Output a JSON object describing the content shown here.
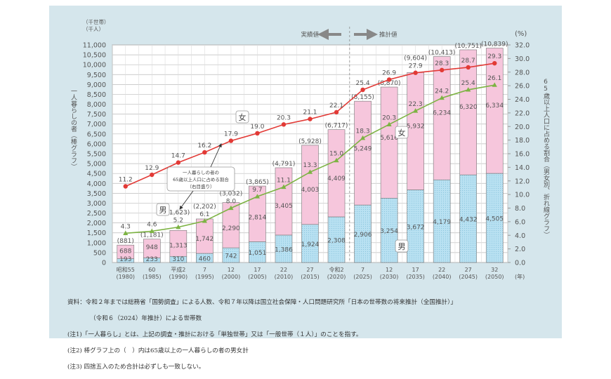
{
  "chart_data": {
    "type": "bar+line",
    "left_axis_unit": "（千世帯）\n（千人）",
    "left_axis_unit_lines": [
      "（千世帯）",
      "（千人）"
    ],
    "ylabel": "一人暮らしの者（棒グラフ）",
    "right_axis_unit": "(%)",
    "ylabel_right": "65歳以上人口に占める割合（男女別、折れ線グラフ）",
    "x_unit": "(年)",
    "ylim": [
      0,
      11000
    ],
    "ylim_right": [
      0,
      32
    ],
    "yticks": [
      "0",
      "500",
      "1,000",
      "1,500",
      "2,000",
      "2,500",
      "3,000",
      "3,500",
      "4,000",
      "4,500",
      "5,000",
      "5,500",
      "6,000",
      "6,500",
      "7,000",
      "7,500",
      "8,000",
      "8,500",
      "9,000",
      "9,500",
      "10,000",
      "10,500",
      "11,000"
    ],
    "yticks_right": [
      "0.0",
      "2.0",
      "4.0",
      "6.0",
      "8.0",
      "10.0",
      "12.0",
      "14.0",
      "16.0",
      "18.0",
      "20.0",
      "22.0",
      "24.0",
      "26.0",
      "28.0",
      "30.0",
      "32.0"
    ],
    "grid": true,
    "categories": [
      {
        "era": "昭和55",
        "year": "(1980)"
      },
      {
        "era": "60",
        "year": "(1985)"
      },
      {
        "era": "平成2",
        "year": "(1990)"
      },
      {
        "era": "7",
        "year": "(1995)"
      },
      {
        "era": "12",
        "year": "(2000)"
      },
      {
        "era": "17",
        "year": "(2005)"
      },
      {
        "era": "22",
        "year": "(2010)"
      },
      {
        "era": "27",
        "year": "(2015)"
      },
      {
        "era": "令和2",
        "year": "(2020)"
      },
      {
        "era": "7",
        "year": "(2025)"
      },
      {
        "era": "12",
        "year": "(2030)"
      },
      {
        "era": "17",
        "year": "(2035)"
      },
      {
        "era": "22",
        "year": "(2040)"
      },
      {
        "era": "27",
        "year": "(2045)"
      },
      {
        "era": "32",
        "year": "(2050)"
      }
    ],
    "bar_series": [
      {
        "name": "男",
        "color": "#b9e1f2",
        "values": [
          193,
          233,
          310,
          460,
          742,
          1051,
          1386,
          1924,
          2308,
          2906,
          3254,
          3672,
          4179,
          4432,
          4505
        ]
      },
      {
        "name": "女",
        "color": "#f6c6dc",
        "values": [
          688,
          948,
          1313,
          1742,
          2290,
          2814,
          3405,
          4003,
          4409,
          5249,
          5616,
          5932,
          6234,
          6320,
          6334
        ]
      }
    ],
    "totals": [
      881,
      1181,
      1623,
      2202,
      3032,
      3865,
      4791,
      5928,
      6717,
      8155,
      8870,
      9604,
      10413,
      10751,
      10839
    ],
    "line_series": [
      {
        "name": "女",
        "color": "#e23a36",
        "marker": "circle",
        "values": [
          11.2,
          12.9,
          14.7,
          16.2,
          17.9,
          19.0,
          20.3,
          21.1,
          22.1,
          25.4,
          26.9,
          27.9,
          28.3,
          28.7,
          29.3
        ]
      },
      {
        "name": "男",
        "color": "#7db343",
        "marker": "triangle",
        "values": [
          4.3,
          4.6,
          5.2,
          6.1,
          8.0,
          9.7,
          11.1,
          13.3,
          15.0,
          18.3,
          20.3,
          22.3,
          24.2,
          25.4,
          26.1
        ]
      }
    ],
    "actual_label": "実績値",
    "projection_label": "推計値",
    "annotation_lines": [
      "一人暮らしの者の",
      "65歳以上人口に占める割合",
      "（右目盛り）"
    ]
  },
  "notes": [
    "資料：令和２年までは総務省「国勢調査」による人数、令和７年以降は国立社会保障・人口問題研究所「日本の世帯数の将来推計（全国推計）」",
    "（令和６（2024）年推計）による世帯数",
    "(注1)「一人暮らし」とは、上記の調査・推計における「単独世帯」又は「一般世帯（１人）」のことを指す。",
    "(注2) 棒グラフ上の（　）内は65歳以上の一人暮らしの者の男女計",
    "(注3) 四捨五入のため合計は必ずしも一致しない。"
  ]
}
